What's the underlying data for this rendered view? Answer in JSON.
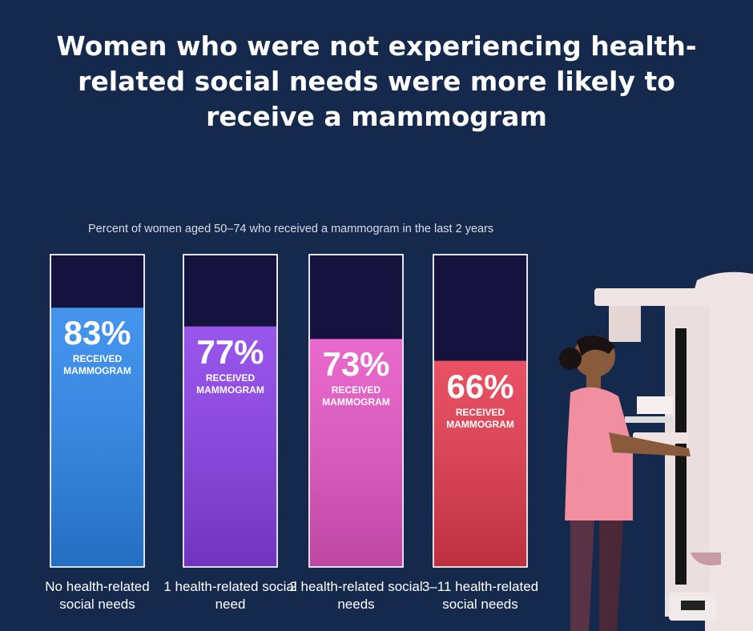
{
  "chart_data": {
    "type": "bar",
    "title": "Women who were not experiencing health-related social needs were more likely to receive a mammogram",
    "subtitle": "Percent of women aged 50–74 who received a mammogram in the last 2 years",
    "categories": [
      "No health-related social needs",
      "1 health-related social need",
      "2 health-related social needs",
      "3–11 health-related social needs"
    ],
    "values": [
      83,
      77,
      73,
      66
    ],
    "value_labels": [
      "83%",
      "77%",
      "73%",
      "66%"
    ],
    "value_caption": "RECEIVED MAMMOGRAM",
    "colors": [
      "#2b86ec",
      "#8a3fe8",
      "#e655c6",
      "#e53a4e"
    ],
    "ylim": [
      0,
      100
    ]
  }
}
